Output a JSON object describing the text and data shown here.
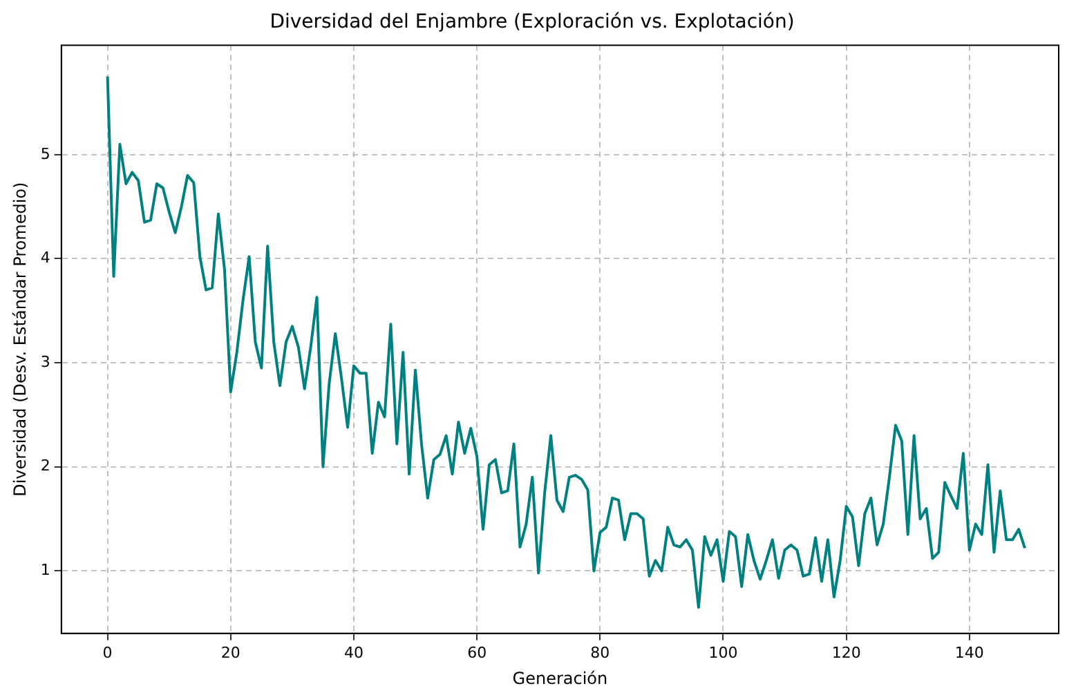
{
  "chart_data": {
    "type": "line",
    "title": "Diversidad del Enjambre (Exploración vs. Explotación)",
    "xlabel": "Generación",
    "ylabel": "Diversidad (Desv. Estándar Promedio)",
    "x": [
      0,
      1,
      2,
      3,
      4,
      5,
      6,
      7,
      8,
      9,
      10,
      11,
      12,
      13,
      14,
      15,
      16,
      17,
      18,
      19,
      20,
      21,
      22,
      23,
      24,
      25,
      26,
      27,
      28,
      29,
      30,
      31,
      32,
      33,
      34,
      35,
      36,
      37,
      38,
      39,
      40,
      41,
      42,
      43,
      44,
      45,
      46,
      47,
      48,
      49,
      50,
      51,
      52,
      53,
      54,
      55,
      56,
      57,
      58,
      59,
      60,
      61,
      62,
      63,
      64,
      65,
      66,
      67,
      68,
      69,
      70,
      71,
      72,
      73,
      74,
      75,
      76,
      77,
      78,
      79,
      80,
      81,
      82,
      83,
      84,
      85,
      86,
      87,
      88,
      89,
      90,
      91,
      92,
      93,
      94,
      95,
      96,
      97,
      98,
      99,
      100,
      101,
      102,
      103,
      104,
      105,
      106,
      107,
      108,
      109,
      110,
      111,
      112,
      113,
      114,
      115,
      116,
      117,
      118,
      119,
      120,
      121,
      122,
      123,
      124,
      125,
      126,
      127,
      128,
      129,
      130,
      131,
      132,
      133,
      134,
      135,
      136,
      137,
      138,
      139,
      140,
      141,
      142,
      143,
      144,
      145,
      146,
      147,
      148,
      149
    ],
    "series": [
      {
        "color": "#008080",
        "values": [
          5.75,
          3.83,
          5.1,
          4.72,
          4.83,
          4.75,
          4.35,
          4.37,
          4.72,
          4.68,
          4.45,
          4.25,
          4.5,
          4.8,
          4.73,
          4.02,
          3.7,
          3.72,
          4.43,
          3.9,
          2.72,
          3.1,
          3.6,
          4.02,
          3.2,
          2.95,
          4.12,
          3.2,
          2.78,
          3.2,
          3.35,
          3.15,
          2.75,
          3.15,
          3.63,
          2.0,
          2.8,
          3.28,
          2.85,
          2.38,
          2.97,
          2.9,
          2.9,
          2.13,
          2.62,
          2.48,
          3.37,
          2.22,
          3.1,
          1.93,
          2.93,
          2.22,
          1.7,
          2.07,
          2.12,
          2.3,
          1.93,
          2.43,
          2.13,
          2.37,
          2.1,
          1.4,
          2.02,
          2.07,
          1.75,
          1.77,
          2.22,
          1.23,
          1.45,
          1.9,
          0.98,
          1.75,
          2.3,
          1.68,
          1.57,
          1.9,
          1.92,
          1.88,
          1.78,
          1.0,
          1.37,
          1.42,
          1.7,
          1.68,
          1.3,
          1.55,
          1.55,
          1.5,
          0.95,
          1.1,
          1.0,
          1.42,
          1.25,
          1.23,
          1.3,
          1.2,
          0.65,
          1.33,
          1.15,
          1.3,
          0.9,
          1.38,
          1.33,
          0.85,
          1.35,
          1.1,
          0.92,
          1.1,
          1.3,
          0.93,
          1.2,
          1.25,
          1.2,
          0.95,
          0.97,
          1.32,
          0.9,
          1.3,
          0.75,
          1.1,
          1.62,
          1.52,
          1.05,
          1.55,
          1.7,
          1.25,
          1.45,
          1.9,
          2.4,
          2.25,
          1.35,
          2.3,
          1.5,
          1.6,
          1.12,
          1.18,
          1.85,
          1.72,
          1.6,
          2.13,
          1.2,
          1.45,
          1.35,
          2.02,
          1.18,
          1.77,
          1.3,
          1.3,
          1.4,
          1.22
        ]
      }
    ],
    "xlim": [
      -7.5,
      154.5
    ],
    "ylim": [
      0.4,
      6.05
    ],
    "xticks": [
      0,
      20,
      40,
      60,
      80,
      100,
      120,
      140
    ],
    "yticks": [
      1,
      2,
      3,
      4,
      5
    ],
    "grid": true,
    "legend": false,
    "marker": "none",
    "line_style": "solid"
  }
}
